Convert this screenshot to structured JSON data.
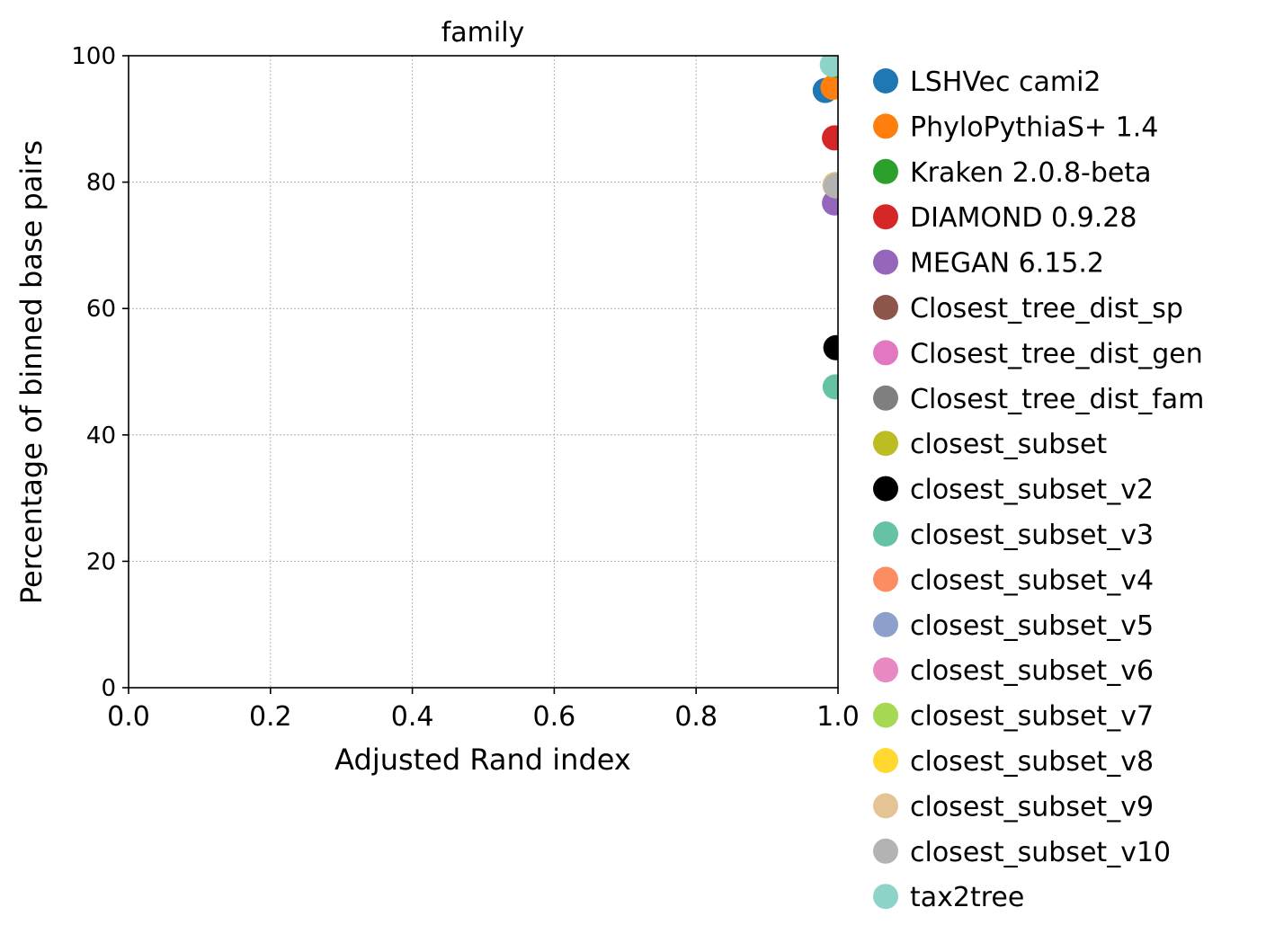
{
  "chart_data": {
    "type": "scatter",
    "title": "family",
    "xlabel": "Adjusted Rand index",
    "ylabel": "Percentage of binned base pairs",
    "xlim": [
      0.0,
      1.0
    ],
    "ylim": [
      0,
      100
    ],
    "xticks": [
      "0.0",
      "0.2",
      "0.4",
      "0.6",
      "0.8",
      "1.0"
    ],
    "yticks": [
      "0",
      "20",
      "40",
      "60",
      "80",
      "100"
    ],
    "grid": true,
    "legend_position": "outside-right",
    "series": [
      {
        "name": "LSHVec cami2",
        "color": "#1f77b4",
        "x": 0.982,
        "y": 94.5
      },
      {
        "name": "PhyloPythiaS+ 1.4",
        "color": "#ff7f0e",
        "x": 0.993,
        "y": 95.0
      },
      {
        "name": "Kraken 2.0.8-beta",
        "color": "#2ca02c",
        "x": 0.998,
        "y": 98.5
      },
      {
        "name": "DIAMOND 0.9.28",
        "color": "#d62728",
        "x": 0.995,
        "y": 87.0
      },
      {
        "name": "MEGAN 6.15.2",
        "color": "#9467bd",
        "x": 0.995,
        "y": 76.7
      },
      {
        "name": "Closest_tree_dist_sp",
        "color": "#8c564b",
        "x": 0.996,
        "y": 79.5
      },
      {
        "name": "Closest_tree_dist_gen",
        "color": "#e377c2",
        "x": 0.996,
        "y": 79.5
      },
      {
        "name": "Closest_tree_dist_fam",
        "color": "#7f7f7f",
        "x": 0.996,
        "y": 79.5
      },
      {
        "name": "closest_subset",
        "color": "#bcbd22",
        "x": 0.996,
        "y": 79.6
      },
      {
        "name": "closest_subset_v2",
        "color": "#000000",
        "x": 0.997,
        "y": 53.8
      },
      {
        "name": "closest_subset_v3",
        "color": "#66c2a5",
        "x": 0.996,
        "y": 47.6
      },
      {
        "name": "closest_subset_v4",
        "color": "#fc8d62",
        "x": 0.996,
        "y": 79.5
      },
      {
        "name": "closest_subset_v5",
        "color": "#8da0cb",
        "x": 0.996,
        "y": 79.5
      },
      {
        "name": "closest_subset_v6",
        "color": "#e78ac3",
        "x": 0.996,
        "y": 79.5
      },
      {
        "name": "closest_subset_v7",
        "color": "#a6d854",
        "x": 0.996,
        "y": 79.5
      },
      {
        "name": "closest_subset_v8",
        "color": "#ffd92f",
        "x": 0.996,
        "y": 79.5
      },
      {
        "name": "closest_subset_v9",
        "color": "#e5c494",
        "x": 0.996,
        "y": 79.5
      },
      {
        "name": "closest_subset_v10",
        "color": "#b3b3b3",
        "x": 0.997,
        "y": 79.4
      },
      {
        "name": "tax2tree",
        "color": "#8dd3c7",
        "x": 0.992,
        "y": 98.6
      }
    ]
  }
}
